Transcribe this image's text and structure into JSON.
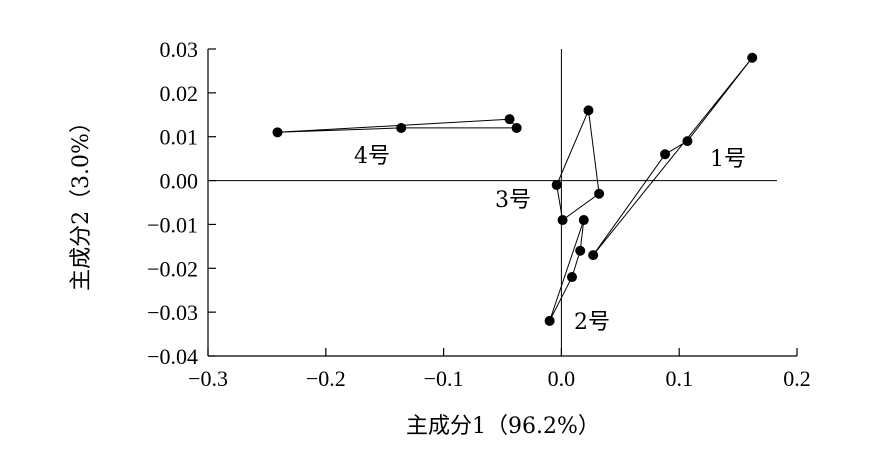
{
  "chart_data": {
    "type": "scatter",
    "xlabel": "主成分1（96.2%）",
    "ylabel": "主成分2（3.0%）",
    "xlim": [
      -0.3,
      0.2
    ],
    "ylim": [
      -0.04,
      0.03
    ],
    "x_ticks": [
      -0.3,
      -0.2,
      -0.1,
      0.0,
      0.1,
      0.2
    ],
    "x_tick_labels": [
      "−0.3",
      "−0.2",
      "−0.1",
      "0.0",
      "0.1",
      "0.2"
    ],
    "y_ticks": [
      -0.04,
      -0.03,
      -0.02,
      -0.01,
      0.0,
      0.01,
      0.02,
      0.03
    ],
    "y_tick_labels": [
      "−0.04",
      "−0.03",
      "−0.02",
      "−0.01",
      "0.00",
      "0.01",
      "0.02",
      "0.03"
    ],
    "grid": false,
    "reference_lines": {
      "x": 0,
      "y": 0
    },
    "series": [
      {
        "name": "1号",
        "points": [
          [
            0.088,
            0.006
          ],
          [
            0.107,
            0.009
          ],
          [
            0.162,
            0.028
          ],
          [
            0.027,
            -0.017
          ]
        ]
      },
      {
        "name": "2号",
        "points": [
          [
            -0.01,
            -0.032
          ],
          [
            0.009,
            -0.022
          ],
          [
            0.016,
            -0.016
          ],
          [
            0.019,
            -0.009
          ]
        ]
      },
      {
        "name": "3号",
        "points": [
          [
            -0.004,
            -0.001
          ],
          [
            0.023,
            0.016
          ],
          [
            0.032,
            -0.003
          ],
          [
            0.001,
            -0.009
          ]
        ]
      },
      {
        "name": "4号",
        "points": [
          [
            -0.241,
            0.011
          ],
          [
            -0.044,
            0.014
          ],
          [
            -0.038,
            0.012
          ],
          [
            -0.136,
            0.012
          ]
        ]
      }
    ]
  }
}
